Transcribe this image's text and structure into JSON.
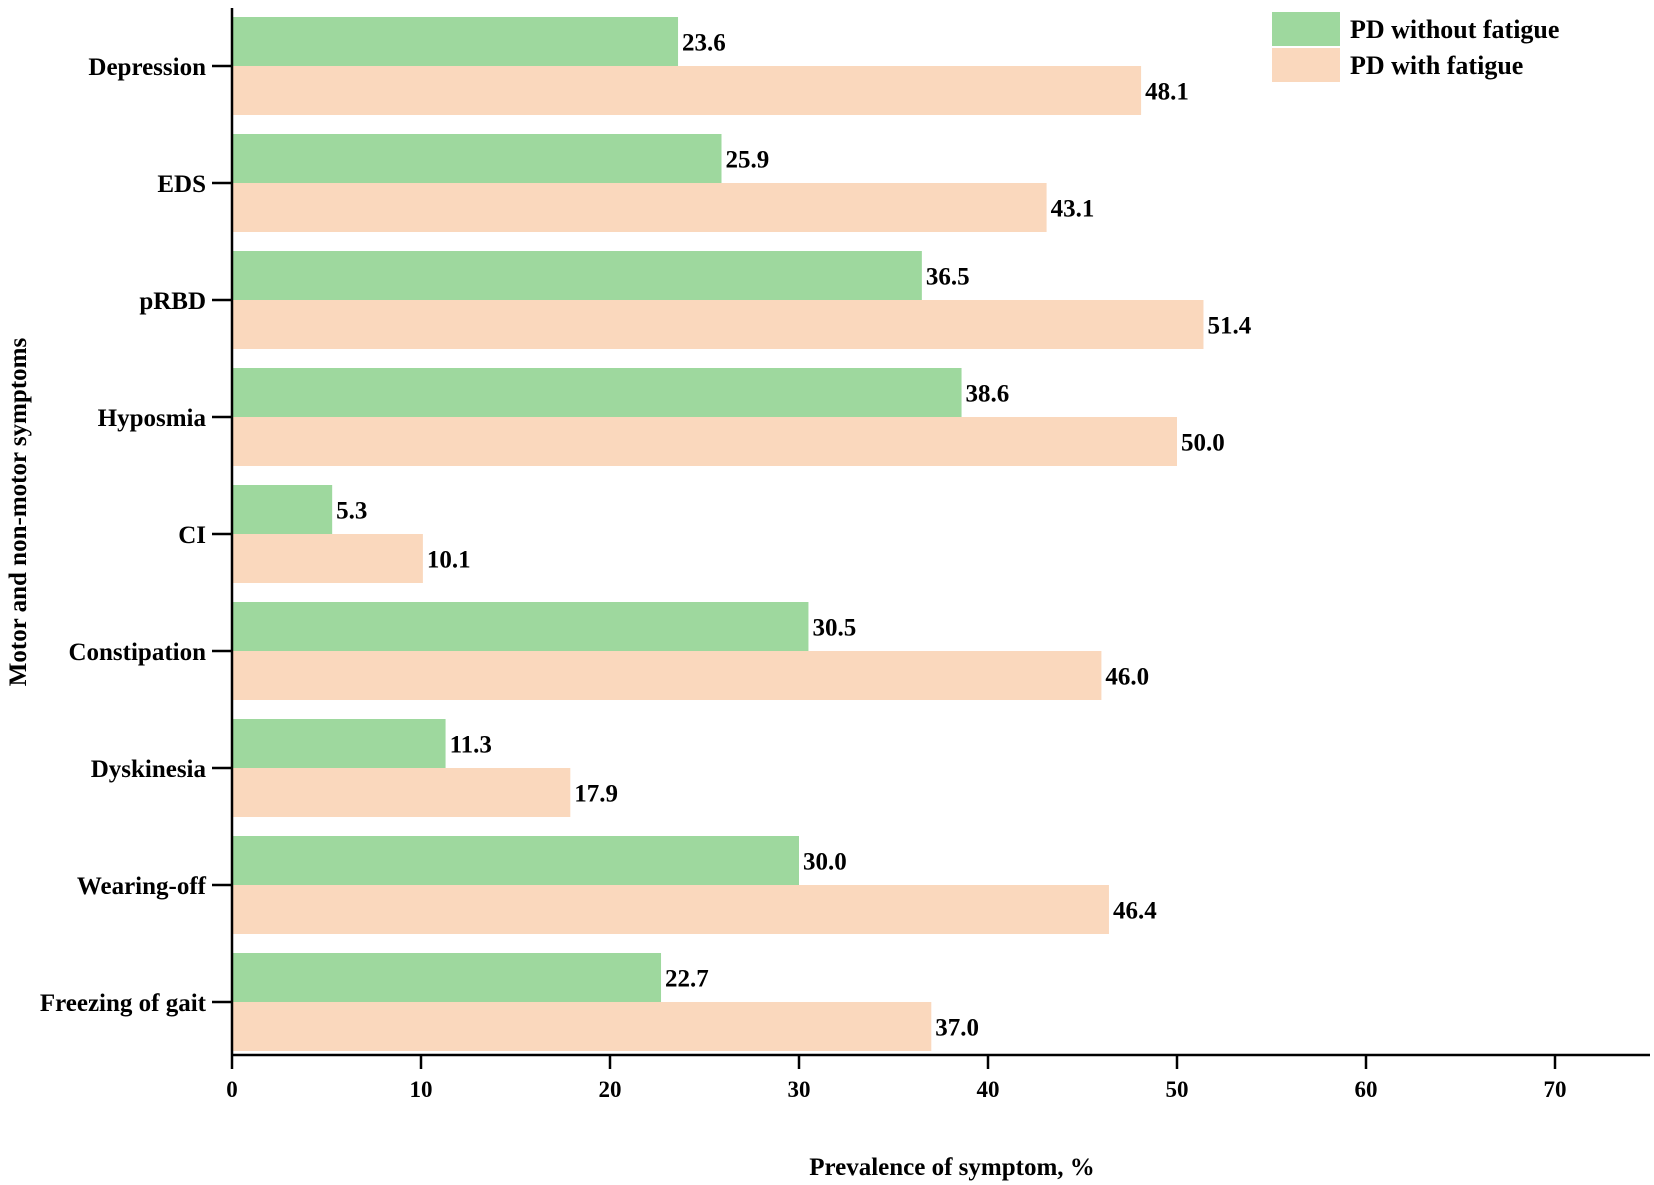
{
  "chart_data": {
    "type": "bar",
    "orientation": "horizontal",
    "title": "",
    "xlabel": "Prevalence of symptom, %",
    "ylabel": "Motor and non-motor symptoms",
    "xlim": [
      0,
      75
    ],
    "xticks": [
      0,
      10,
      20,
      30,
      40,
      50,
      60,
      70
    ],
    "grid": false,
    "legend_position": "top-right",
    "categories": [
      "Depression",
      "EDS",
      "pRBD",
      "Hyposmia",
      "CI",
      "Constipation",
      "Dyskinesia",
      "Wearing-off",
      "Freezing of gait"
    ],
    "series": [
      {
        "name": "PD without fatigue",
        "color": "#9ed89e",
        "values": [
          23.6,
          25.9,
          36.5,
          38.6,
          5.3,
          30.5,
          11.3,
          30.0,
          22.7
        ],
        "labels": [
          "23.6",
          "25.9",
          "36.5",
          "38.6",
          "5.3",
          "30.5",
          "11.3",
          "30.0",
          "22.7"
        ]
      },
      {
        "name": "PD with fatigue",
        "color": "#fad8bd",
        "values": [
          48.1,
          43.1,
          51.4,
          50.0,
          10.1,
          46.0,
          17.9,
          46.4,
          37.0
        ],
        "labels": [
          "48.1",
          "43.1",
          "51.4",
          "50.0",
          "10.1",
          "46.0",
          "17.9",
          "46.4",
          "37.0"
        ]
      }
    ]
  }
}
